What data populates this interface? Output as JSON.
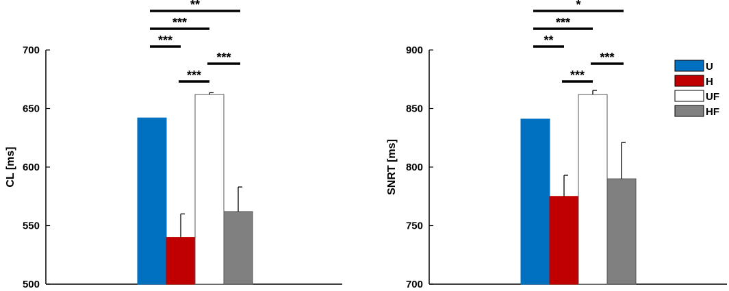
{
  "chart_data": [
    {
      "type": "bar",
      "ylabel": "CL [ms]",
      "ylim": [
        500,
        700
      ],
      "yticks": [
        500,
        550,
        600,
        650,
        700
      ],
      "series": [
        {
          "name": "U",
          "value": 642,
          "error": 0
        },
        {
          "name": "H",
          "value": 540,
          "error": 20
        },
        {
          "name": "UF",
          "value": 662,
          "error": 1.5
        },
        {
          "name": "HF",
          "value": 562,
          "error": 21
        }
      ],
      "significance": [
        {
          "from": "U",
          "to": "HF",
          "label": "**"
        },
        {
          "from": "U",
          "to": "UF",
          "label": "***"
        },
        {
          "from": "U",
          "to": "H",
          "label": "***"
        },
        {
          "from": "UF",
          "to": "HF",
          "label": "***"
        },
        {
          "from": "H",
          "to": "UF",
          "label": "***"
        }
      ]
    },
    {
      "type": "bar",
      "ylabel": "SNRT [ms]",
      "ylim": [
        700,
        900
      ],
      "yticks": [
        700,
        750,
        800,
        850,
        900
      ],
      "series": [
        {
          "name": "U",
          "value": 841,
          "error": 0
        },
        {
          "name": "H",
          "value": 775,
          "error": 18
        },
        {
          "name": "UF",
          "value": 862,
          "error": 3.5
        },
        {
          "name": "HF",
          "value": 790,
          "error": 31
        }
      ],
      "significance": [
        {
          "from": "U",
          "to": "HF",
          "label": "*"
        },
        {
          "from": "U",
          "to": "UF",
          "label": "***"
        },
        {
          "from": "U",
          "to": "H",
          "label": "**"
        },
        {
          "from": "UF",
          "to": "HF",
          "label": "***"
        },
        {
          "from": "H",
          "to": "UF",
          "label": "***"
        }
      ]
    }
  ],
  "legend": {
    "placement": "top-right",
    "items": [
      {
        "label": "U",
        "color": "#0070C0"
      },
      {
        "label": "H",
        "color": "#C00000"
      },
      {
        "label": "UF",
        "color": "#FFFFFF"
      },
      {
        "label": "HF",
        "color": "#808080"
      }
    ]
  },
  "colors": {
    "U": "#0070C0",
    "H": "#C00000",
    "UF": "#FFFFFF",
    "HF": "#808080"
  }
}
